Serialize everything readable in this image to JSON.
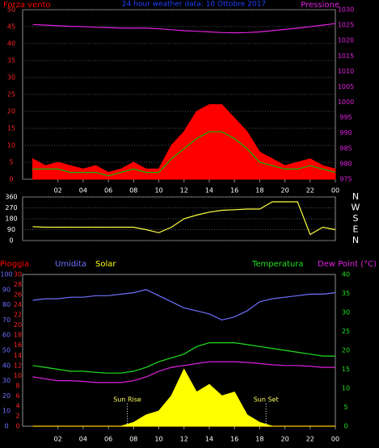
{
  "chart_data": [
    {
      "type": "line",
      "title": "24 hour weather data: 10 Ottobre 2017",
      "x": [
        0,
        1,
        2,
        3,
        4,
        5,
        6,
        7,
        8,
        9,
        10,
        11,
        12,
        13,
        14,
        15,
        16,
        17,
        18,
        19,
        20,
        21,
        22,
        23,
        24
      ],
      "xlim": [
        -0.8,
        24
      ],
      "xticks": [
        {
          "value": 2,
          "label": "02"
        },
        {
          "value": 4,
          "label": "04"
        },
        {
          "value": 6,
          "label": "06"
        },
        {
          "value": 8,
          "label": "08"
        },
        10,
        12,
        14,
        16,
        18,
        20,
        22,
        {
          "value": 24,
          "label": "00"
        }
      ],
      "ylim": [
        0,
        50
      ],
      "yticks": [
        0,
        5,
        10,
        15,
        20,
        25,
        30,
        35,
        40,
        45,
        50
      ],
      "ytick_color": "#ff2020",
      "y2lim": [
        975,
        1030
      ],
      "y2ticks": [
        975,
        980,
        985,
        990,
        995,
        1000,
        1005,
        1010,
        1015,
        1020,
        1025,
        1030
      ],
      "y2tick_color": "#e020e0",
      "grid": true,
      "series": [
        {
          "name": "Forza vento",
          "color": "#ff0000",
          "style": "area",
          "values": [
            6,
            4,
            5,
            4,
            3,
            4,
            2,
            3,
            5,
            3,
            3,
            10,
            14,
            20,
            22,
            22,
            18,
            14,
            8,
            6,
            4,
            5,
            6,
            4,
            3
          ]
        },
        {
          "color": "#00c000",
          "style": "line",
          "values": [
            3,
            3,
            3,
            2,
            2,
            2,
            1,
            2,
            3,
            2,
            2,
            6,
            9,
            12,
            14,
            14,
            12,
            9,
            5,
            4,
            3,
            3,
            4,
            3,
            2
          ]
        },
        {
          "name": "Pressione",
          "color": "#e020e0",
          "style": "line",
          "axis": "y2",
          "values": [
            1025.2,
            1025,
            1024.8,
            1024.6,
            1024.5,
            1024.3,
            1024.2,
            1024,
            1024,
            1024,
            1023.8,
            1023.5,
            1023.2,
            1023,
            1022.8,
            1022.6,
            1022.5,
            1022.6,
            1022.8,
            1023.2,
            1023.6,
            1024,
            1024.5,
            1025,
            1025.5
          ]
        }
      ]
    },
    {
      "type": "line",
      "x": [
        0,
        1,
        2,
        3,
        4,
        5,
        6,
        7,
        8,
        9,
        10,
        11,
        12,
        13,
        14,
        15,
        16,
        17,
        18,
        19,
        20,
        21,
        22,
        23,
        24
      ],
      "xlim": [
        -0.8,
        24
      ],
      "ylim": [
        0,
        360
      ],
      "yticks": [
        0,
        90,
        180,
        270,
        360
      ],
      "ytick_color": "#ffffff",
      "y2lim": [
        0,
        360
      ],
      "y2ticks": [
        {
          "value": 360,
          "label": "N"
        },
        {
          "value": 270,
          "label": "W"
        },
        {
          "value": 180,
          "label": "S"
        },
        {
          "value": 90,
          "label": "E"
        },
        {
          "value": 0,
          "label": "N"
        }
      ],
      "y2tick_color": "#ffffff",
      "grid": true,
      "series": [
        {
          "color": "#ffff40",
          "style": "line",
          "values": [
            115,
            110,
            110,
            110,
            110,
            110,
            110,
            110,
            110,
            90,
            65,
            110,
            180,
            210,
            235,
            250,
            255,
            260,
            260,
            320,
            320,
            320,
            50,
            110,
            90
          ]
        }
      ]
    },
    {
      "type": "line",
      "x": [
        0,
        1,
        2,
        3,
        4,
        5,
        6,
        7,
        8,
        9,
        10,
        11,
        12,
        13,
        14,
        15,
        16,
        17,
        18,
        19,
        20,
        21,
        22,
        23,
        24
      ],
      "xlim": [
        -0.8,
        24
      ],
      "xticks": [
        {
          "value": 2,
          "label": "02"
        },
        {
          "value": 4,
          "label": "04"
        },
        {
          "value": 6,
          "label": "06"
        },
        {
          "value": 8,
          "label": "08"
        },
        10,
        12,
        14,
        16,
        18,
        20,
        22,
        {
          "value": 24,
          "label": "00"
        }
      ],
      "ylim": [
        0,
        100
      ],
      "yticks": [
        0,
        10,
        20,
        30,
        40,
        50,
        60,
        70,
        80,
        90,
        100
      ],
      "ytick_color": "#7070ff",
      "y3lim": [
        0,
        30
      ],
      "y3ticks": [
        0,
        2,
        4,
        6,
        8,
        10,
        12,
        14,
        16,
        18,
        20,
        22,
        24,
        26,
        28,
        30
      ],
      "y3tick_color": "#ff2020",
      "y2lim": [
        0,
        40
      ],
      "y2ticks": [
        0,
        5,
        10,
        15,
        20,
        25,
        30,
        35,
        40
      ],
      "y2tick_color": "#20e020",
      "grid": false,
      "annotations": [
        {
          "text": "Sun Rise",
          "x": 7.5,
          "y": 7
        },
        {
          "text": "Sun Set",
          "x": 18.5,
          "y": 7
        }
      ],
      "series": [
        {
          "name": "Pioggia",
          "color": "#ff0000",
          "style": "line",
          "axis": "y3",
          "values": [
            0,
            0,
            0,
            0,
            0,
            0,
            0,
            0,
            0,
            0,
            0,
            0,
            0,
            0,
            0,
            0,
            0,
            0,
            0,
            0,
            0,
            0,
            0,
            0,
            0
          ]
        },
        {
          "name": "Umidita",
          "color": "#7070ff",
          "style": "line",
          "values": [
            83,
            84,
            84,
            85,
            85,
            86,
            86,
            87,
            88,
            90,
            86,
            82,
            78,
            76,
            74,
            70,
            72,
            76,
            82,
            84,
            85,
            86,
            87,
            87,
            88
          ]
        },
        {
          "name": "Solar",
          "color": "#ffff00",
          "style": "area",
          "axis": "y2",
          "values": [
            0,
            0,
            0,
            0,
            0,
            0,
            0,
            0,
            1,
            3,
            4,
            8,
            15,
            9,
            11,
            8,
            9,
            3,
            1,
            0,
            0,
            0,
            0,
            0,
            0
          ]
        },
        {
          "name": "Temperatura",
          "color": "#20e020",
          "style": "line",
          "axis": "y2",
          "values": [
            16,
            15.5,
            15,
            14.5,
            14.5,
            14.2,
            14,
            14,
            14.5,
            15.5,
            17,
            18,
            19,
            21,
            22,
            22,
            22,
            21.5,
            21,
            20.5,
            20,
            19.5,
            19,
            18.5,
            18.5
          ]
        },
        {
          "name": "Dew Point (°C)",
          "color": "#e020e0",
          "style": "line",
          "axis": "y2",
          "values": [
            13,
            12.5,
            12,
            12,
            11.8,
            11.5,
            11.5,
            11.5,
            12,
            13,
            14.5,
            15.5,
            16,
            16.5,
            17,
            17,
            17,
            16.8,
            16.5,
            16.2,
            16,
            16,
            15.8,
            15.5,
            15.5
          ]
        }
      ]
    }
  ]
}
